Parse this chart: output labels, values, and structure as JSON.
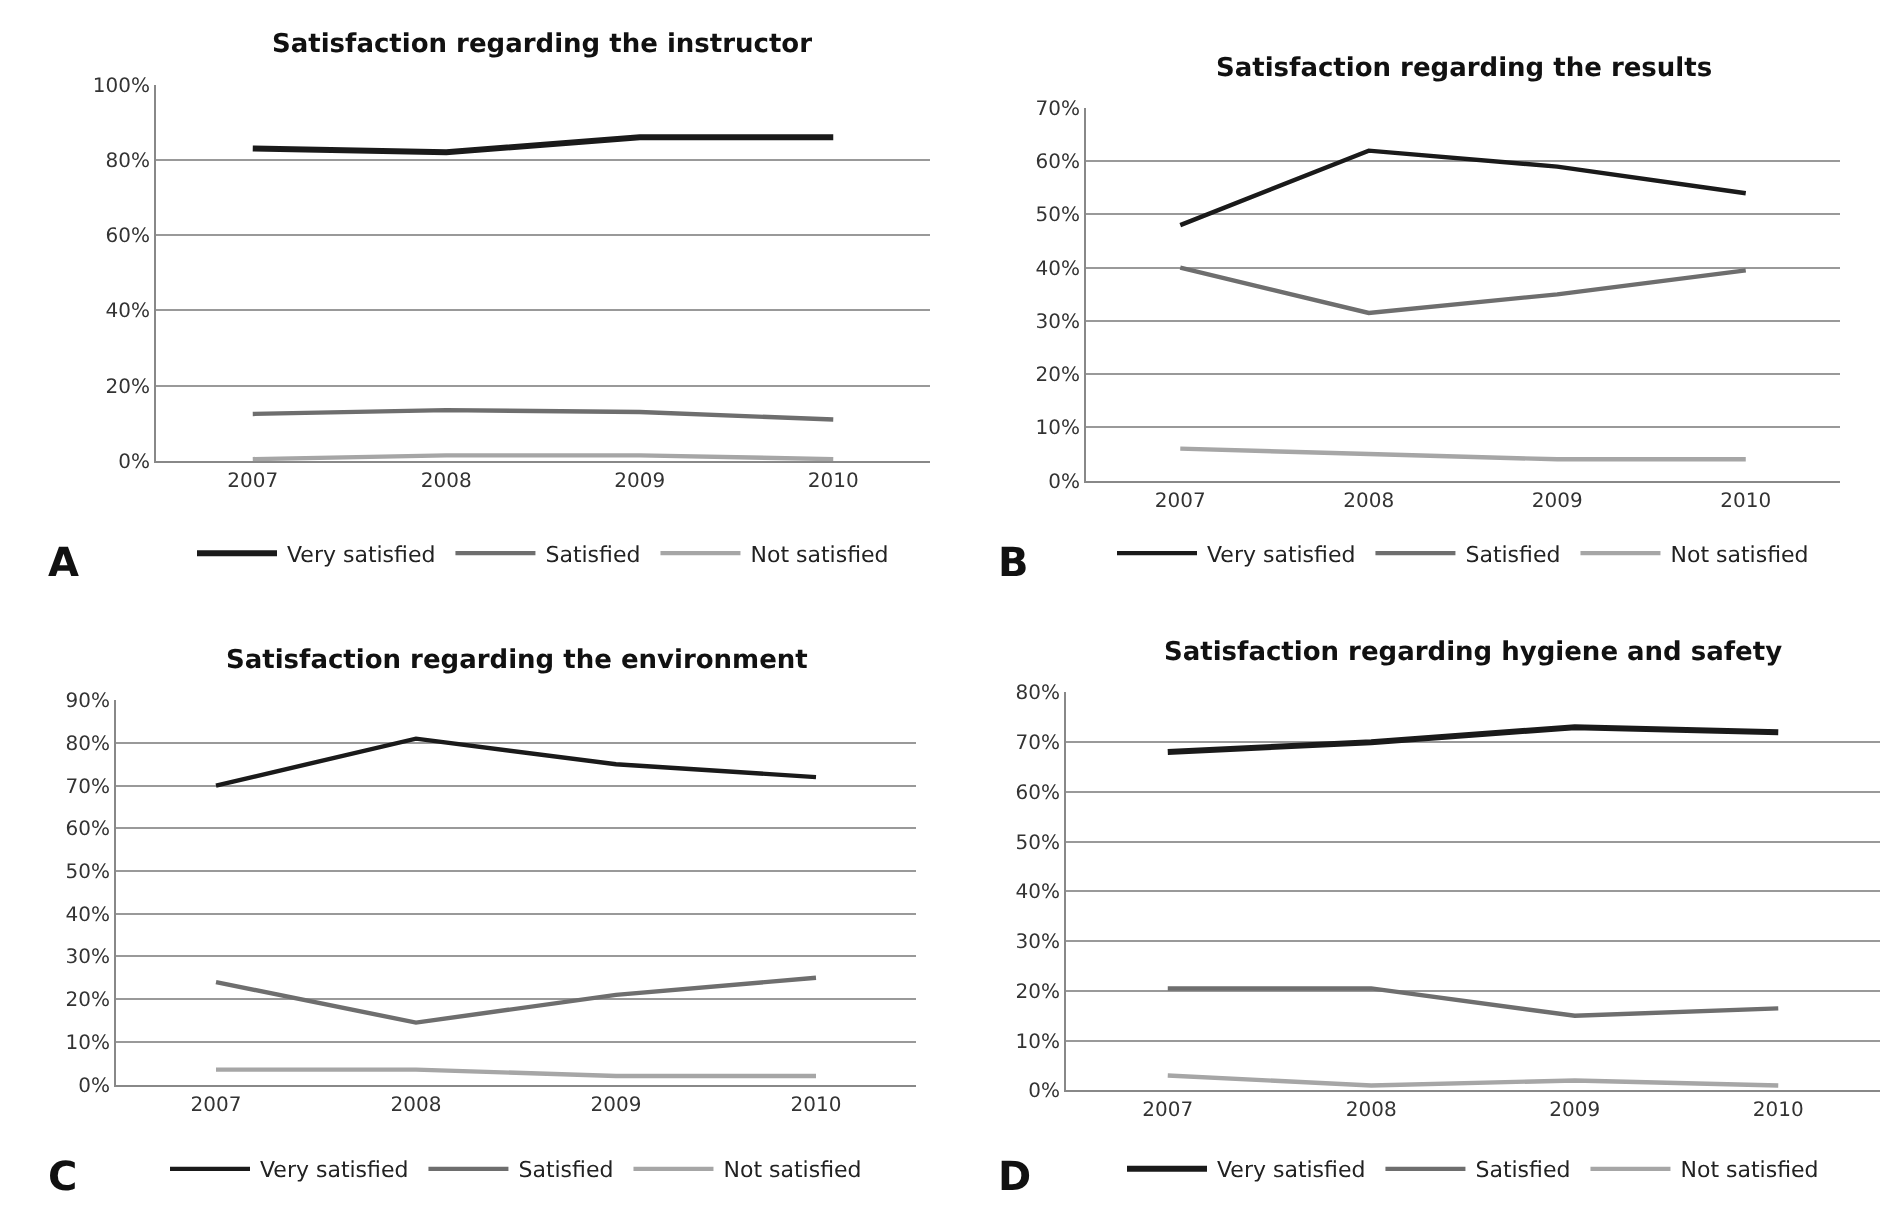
{
  "chart_data": [
    {
      "type": "line",
      "title": "Satisfaction regarding the instructor",
      "categories": [
        "2007",
        "2008",
        "2009",
        "2010"
      ],
      "series": [
        {
          "name": "Very satisfied",
          "color": "#1a1a1a",
          "values": [
            83,
            82,
            86,
            86
          ]
        },
        {
          "name": "Satisfied",
          "color": "#6e6e6e",
          "values": [
            12.5,
            13.5,
            13,
            11
          ]
        },
        {
          "name": "Not satisfied",
          "color": "#a6a6a6",
          "values": [
            0.5,
            1.5,
            1.5,
            0.5
          ]
        }
      ],
      "ylim": [
        0,
        100
      ],
      "yticks": [
        {
          "value": 0,
          "label": "0%"
        },
        {
          "value": 20,
          "label": "20%"
        },
        {
          "value": 40,
          "label": "40%"
        },
        {
          "value": 60,
          "label": "60%"
        },
        {
          "value": 80,
          "label": "80%"
        },
        {
          "value": 100,
          "label": "100%"
        }
      ],
      "grid": "y",
      "legend": "bottom",
      "annotations": [
        "A"
      ]
    },
    {
      "type": "line",
      "title": "Satisfaction regarding the results",
      "categories": [
        "2007",
        "2008",
        "2009",
        "2010"
      ],
      "series": [
        {
          "name": "Very satisfied",
          "color": "#1a1a1a",
          "values": [
            48,
            62,
            59,
            54
          ]
        },
        {
          "name": "Satisfied",
          "color": "#6e6e6e",
          "values": [
            40,
            31.5,
            35,
            39.5
          ]
        },
        {
          "name": "Not satisfied",
          "color": "#a6a6a6",
          "values": [
            6,
            5,
            4,
            4
          ]
        }
      ],
      "ylim": [
        0,
        70
      ],
      "yticks": [
        {
          "value": 0,
          "label": "0%"
        },
        {
          "value": 10,
          "label": "10%"
        },
        {
          "value": 20,
          "label": "20%"
        },
        {
          "value": 30,
          "label": "30%"
        },
        {
          "value": 40,
          "label": "40%"
        },
        {
          "value": 50,
          "label": "50%"
        },
        {
          "value": 60,
          "label": "60%"
        },
        {
          "value": 70,
          "label": "70%"
        }
      ],
      "grid": "y",
      "legend": "bottom",
      "annotations": [
        "B"
      ]
    },
    {
      "type": "line",
      "title": "Satisfaction regarding the environment",
      "categories": [
        "2007",
        "2008",
        "2009",
        "2010"
      ],
      "series": [
        {
          "name": "Very satisfied",
          "color": "#1a1a1a",
          "values": [
            70,
            81,
            75,
            72
          ]
        },
        {
          "name": "Satisfied",
          "color": "#6e6e6e",
          "values": [
            24,
            14.5,
            21,
            25
          ]
        },
        {
          "name": "Not satisfied",
          "color": "#a6a6a6",
          "values": [
            3.5,
            3.5,
            2,
            2
          ]
        }
      ],
      "ylim": [
        0,
        90
      ],
      "yticks": [
        {
          "value": 0,
          "label": "0%"
        },
        {
          "value": 10,
          "label": "10%"
        },
        {
          "value": 20,
          "label": "20%"
        },
        {
          "value": 30,
          "label": "30%"
        },
        {
          "value": 40,
          "label": "40%"
        },
        {
          "value": 50,
          "label": "50%"
        },
        {
          "value": 60,
          "label": "60%"
        },
        {
          "value": 70,
          "label": "70%"
        },
        {
          "value": 80,
          "label": "80%"
        },
        {
          "value": 90,
          "label": "90%"
        }
      ],
      "grid": "y",
      "legend": "bottom",
      "annotations": [
        "C"
      ]
    },
    {
      "type": "line",
      "title": "Satisfaction regarding hygiene and safety",
      "categories": [
        "2007",
        "2008",
        "2009",
        "2010"
      ],
      "series": [
        {
          "name": "Very satisfied",
          "color": "#1a1a1a",
          "values": [
            68,
            70,
            73,
            72
          ]
        },
        {
          "name": "Satisfied",
          "color": "#6e6e6e",
          "values": [
            20.5,
            20.5,
            15,
            16.5
          ]
        },
        {
          "name": "Not satisfied",
          "color": "#a6a6a6",
          "values": [
            3,
            1,
            2,
            1
          ]
        }
      ],
      "ylim": [
        0,
        80
      ],
      "yticks": [
        {
          "value": 0,
          "label": "0%"
        },
        {
          "value": 10,
          "label": "10%"
        },
        {
          "value": 20,
          "label": "20%"
        },
        {
          "value": 30,
          "label": "30%"
        },
        {
          "value": 40,
          "label": "40%"
        },
        {
          "value": 50,
          "label": "50%"
        },
        {
          "value": 60,
          "label": "60%"
        },
        {
          "value": 70,
          "label": "70%"
        },
        {
          "value": 80,
          "label": "80%"
        }
      ],
      "grid": "y",
      "legend": "bottom",
      "annotations": [
        "D"
      ]
    }
  ]
}
